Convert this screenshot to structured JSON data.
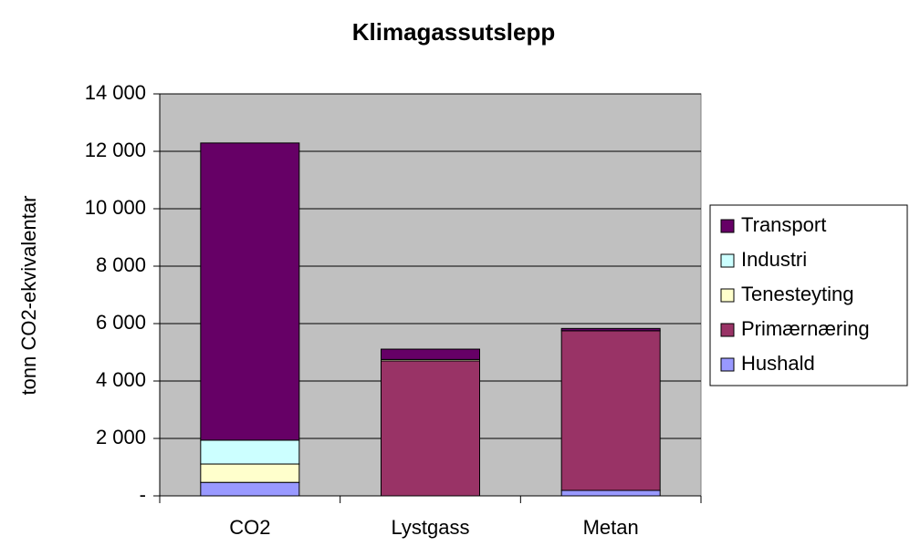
{
  "chart_data": {
    "type": "stacked_bar",
    "title": "Klimagassutslepp",
    "y_label": "tonn CO2-ekvivalentar",
    "categories": [
      "CO2",
      "Lystgass",
      "Metan"
    ],
    "series": [
      {
        "name": "Hushald",
        "color": "#9999ff",
        "values": [
          470,
          0,
          190
        ]
      },
      {
        "name": "Primærnæring",
        "color": "#993366",
        "values": [
          0,
          4700,
          5560
        ]
      },
      {
        "name": "Tenesteyting",
        "color": "#ffffcc",
        "values": [
          640,
          50,
          0
        ]
      },
      {
        "name": "Industri",
        "color": "#ccffff",
        "values": [
          830,
          0,
          0
        ]
      },
      {
        "name": "Transport",
        "color": "#660066",
        "values": [
          10350,
          360,
          80
        ]
      }
    ],
    "ylim": [
      0,
      14000
    ],
    "yticks": [
      {
        "value": 0,
        "label": "-"
      },
      {
        "value": 2000,
        "label": "2 000"
      },
      {
        "value": 4000,
        "label": "4 000"
      },
      {
        "value": 6000,
        "label": "6 000"
      },
      {
        "value": 8000,
        "label": "8 000"
      },
      {
        "value": 10000,
        "label": "10 000"
      },
      {
        "value": 12000,
        "label": "12 000"
      },
      {
        "value": 14000,
        "label": "14 000"
      }
    ],
    "grid": true,
    "plot_background": "#c0c0c0",
    "legend": "right"
  }
}
